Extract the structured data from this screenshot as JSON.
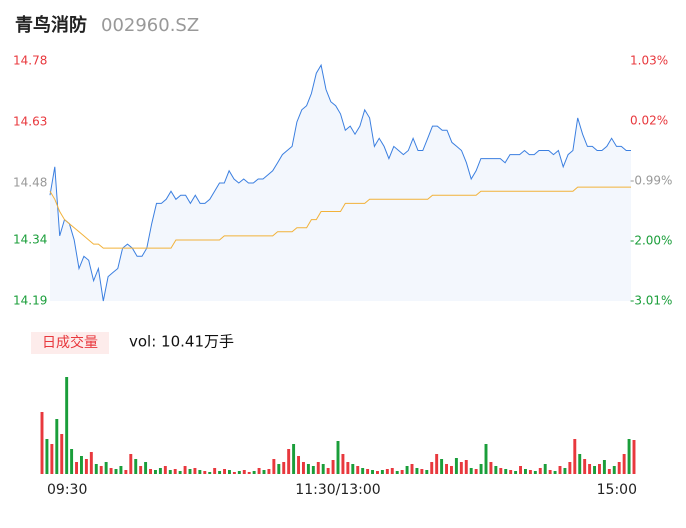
{
  "header": {
    "name": "青鸟消防",
    "code": "002960.SZ"
  },
  "chart_data": {
    "type": "line",
    "xlim": [
      0,
      240
    ],
    "xticks": [
      {
        "value": 0,
        "label": "09:30"
      },
      {
        "value": 120,
        "label": "11:30/13:00"
      },
      {
        "value": 240,
        "label": "15:00"
      }
    ],
    "ylim": [
      14.19,
      14.78
    ],
    "yticks": [
      14.78,
      14.63,
      14.48,
      14.34,
      14.19
    ],
    "y2lim": [
      -3.01,
      1.03
    ],
    "y2ticks": [
      {
        "value": 1.03,
        "label": "1.03%"
      },
      {
        "value": 0.02,
        "label": "0.02%"
      },
      {
        "value": -0.99,
        "label": "-0.99%"
      },
      {
        "value": -2,
        "label": "-2.00%"
      },
      {
        "value": -3.01,
        "label": "-3.01%"
      }
    ],
    "tick_colors": [
      "#e8383d",
      "#e8383d",
      "#999999",
      "#1a9e3a",
      "#1a9e3a"
    ],
    "grid": false,
    "x": [
      0,
      2,
      4,
      6,
      8,
      10,
      12,
      14,
      16,
      18,
      20,
      22,
      24,
      26,
      28,
      30,
      32,
      34,
      36,
      38,
      40,
      42,
      44,
      46,
      48,
      50,
      52,
      54,
      56,
      58,
      60,
      62,
      64,
      66,
      68,
      70,
      72,
      74,
      76,
      78,
      80,
      82,
      84,
      86,
      88,
      90,
      92,
      94,
      96,
      98,
      100,
      102,
      104,
      106,
      108,
      110,
      112,
      114,
      116,
      118,
      120,
      122,
      124,
      126,
      128,
      130,
      132,
      134,
      136,
      138,
      140,
      142,
      144,
      146,
      148,
      150,
      152,
      154,
      156,
      158,
      160,
      162,
      164,
      166,
      168,
      170,
      172,
      174,
      176,
      178,
      180,
      182,
      184,
      186,
      188,
      190,
      192,
      194,
      196,
      198,
      200,
      202,
      204,
      206,
      208,
      210,
      212,
      214,
      216,
      218,
      220,
      222,
      224,
      226,
      228,
      230,
      232,
      234,
      236,
      238,
      240
    ],
    "series": [
      {
        "name": "price",
        "color": "#3b7fe0",
        "fill": "#f3f7fd",
        "values": [
          14.45,
          14.52,
          14.35,
          14.39,
          14.38,
          14.34,
          14.27,
          14.3,
          14.29,
          14.24,
          14.27,
          14.19,
          14.25,
          14.26,
          14.27,
          14.32,
          14.33,
          14.32,
          14.3,
          14.3,
          14.32,
          14.38,
          14.43,
          14.43,
          14.44,
          14.46,
          14.44,
          14.45,
          14.45,
          14.43,
          14.45,
          14.43,
          14.43,
          14.44,
          14.46,
          14.48,
          14.48,
          14.51,
          14.49,
          14.48,
          14.49,
          14.48,
          14.48,
          14.49,
          14.49,
          14.5,
          14.51,
          14.53,
          14.55,
          14.56,
          14.57,
          14.63,
          14.66,
          14.67,
          14.7,
          14.75,
          14.77,
          14.71,
          14.68,
          14.67,
          14.65,
          14.61,
          14.62,
          14.6,
          14.62,
          14.66,
          14.64,
          14.57,
          14.59,
          14.57,
          14.54,
          14.57,
          14.56,
          14.55,
          14.56,
          14.59,
          14.56,
          14.56,
          14.59,
          14.62,
          14.62,
          14.61,
          14.61,
          14.58,
          14.57,
          14.56,
          14.53,
          14.49,
          14.51,
          14.54,
          14.54,
          14.54,
          14.54,
          14.54,
          14.53,
          14.55,
          14.55,
          14.55,
          14.56,
          14.55,
          14.55,
          14.56,
          14.56,
          14.56,
          14.55,
          14.56,
          14.52,
          14.55,
          14.56,
          14.64,
          14.6,
          14.57,
          14.57,
          14.56,
          14.56,
          14.57,
          14.59,
          14.57,
          14.57,
          14.56,
          14.56
        ]
      },
      {
        "name": "average",
        "color": "#f2b23a",
        "values": [
          14.46,
          14.44,
          14.41,
          14.39,
          14.38,
          14.37,
          14.36,
          14.35,
          14.34,
          14.33,
          14.33,
          14.32,
          14.32,
          14.32,
          14.32,
          14.32,
          14.32,
          14.32,
          14.32,
          14.32,
          14.32,
          14.32,
          14.32,
          14.32,
          14.32,
          14.32,
          14.34,
          14.34,
          14.34,
          14.34,
          14.34,
          14.34,
          14.34,
          14.34,
          14.34,
          14.34,
          14.35,
          14.35,
          14.35,
          14.35,
          14.35,
          14.35,
          14.35,
          14.35,
          14.35,
          14.35,
          14.35,
          14.36,
          14.36,
          14.36,
          14.36,
          14.37,
          14.37,
          14.37,
          14.39,
          14.39,
          14.41,
          14.41,
          14.41,
          14.41,
          14.41,
          14.43,
          14.43,
          14.43,
          14.43,
          14.43,
          14.44,
          14.44,
          14.44,
          14.44,
          14.44,
          14.44,
          14.44,
          14.44,
          14.44,
          14.44,
          14.44,
          14.44,
          14.44,
          14.45,
          14.45,
          14.45,
          14.45,
          14.45,
          14.45,
          14.45,
          14.45,
          14.45,
          14.45,
          14.46,
          14.46,
          14.46,
          14.46,
          14.46,
          14.46,
          14.46,
          14.46,
          14.46,
          14.46,
          14.46,
          14.46,
          14.46,
          14.46,
          14.46,
          14.46,
          14.46,
          14.46,
          14.46,
          14.46,
          14.47,
          14.47,
          14.47,
          14.47,
          14.47,
          14.47,
          14.47,
          14.47,
          14.47,
          14.47,
          14.47,
          14.47
        ]
      }
    ],
    "volume": {
      "label": "日成交量",
      "summary": "vol: 10.41万手",
      "up_color": "#e8383d",
      "down_color": "#1a9e3a",
      "values": [
        62,
        35,
        30,
        55,
        40,
        97,
        25,
        12,
        18,
        15,
        22,
        10,
        8,
        12,
        6,
        5,
        8,
        4,
        20,
        15,
        8,
        12,
        5,
        4,
        6,
        8,
        4,
        5,
        3,
        8,
        5,
        6,
        4,
        3,
        2,
        6,
        3,
        5,
        4,
        2,
        3,
        4,
        2,
        3,
        6,
        4,
        5,
        15,
        10,
        12,
        25,
        30,
        18,
        12,
        10,
        8,
        12,
        10,
        6,
        14,
        33,
        20,
        12,
        10,
        8,
        6,
        5,
        4,
        3,
        4,
        5,
        6,
        3,
        4,
        8,
        10,
        6,
        5,
        4,
        12,
        20,
        15,
        10,
        8,
        16,
        12,
        14,
        6,
        5,
        10,
        30,
        12,
        8,
        6,
        5,
        4,
        3,
        8,
        5,
        4,
        3,
        6,
        10,
        4,
        3,
        8,
        6,
        12,
        35,
        20,
        15,
        10,
        8,
        10,
        14,
        5,
        8,
        12,
        20,
        35,
        34
      ],
      "directions": [
        "up",
        "down",
        "up",
        "down",
        "up",
        "down",
        "down",
        "up",
        "down",
        "up",
        "up",
        "down",
        "up",
        "down",
        "up",
        "down",
        "down",
        "up",
        "up",
        "down",
        "up",
        "down",
        "up",
        "down",
        "down",
        "up",
        "down",
        "up",
        "down",
        "up",
        "down",
        "up",
        "down",
        "up",
        "down",
        "up",
        "down",
        "up",
        "down",
        "up",
        "down",
        "up",
        "up",
        "down",
        "up",
        "down",
        "up",
        "up",
        "down",
        "up",
        "up",
        "down",
        "up",
        "up",
        "down",
        "down",
        "up",
        "down",
        "up",
        "up",
        "down",
        "up",
        "up",
        "down",
        "up",
        "down",
        "up",
        "down",
        "up",
        "down",
        "up",
        "up",
        "down",
        "up",
        "down",
        "up",
        "down",
        "up",
        "down",
        "up",
        "up",
        "down",
        "up",
        "up",
        "down",
        "up",
        "up",
        "down",
        "up",
        "down",
        "down",
        "up",
        "down",
        "up",
        "down",
        "up",
        "down",
        "up",
        "down",
        "up",
        "down",
        "up",
        "down",
        "up",
        "down",
        "up",
        "down",
        "up",
        "up",
        "down",
        "up",
        "up",
        "down",
        "up",
        "down",
        "up",
        "down",
        "up",
        "up",
        "down",
        "up"
      ]
    }
  }
}
